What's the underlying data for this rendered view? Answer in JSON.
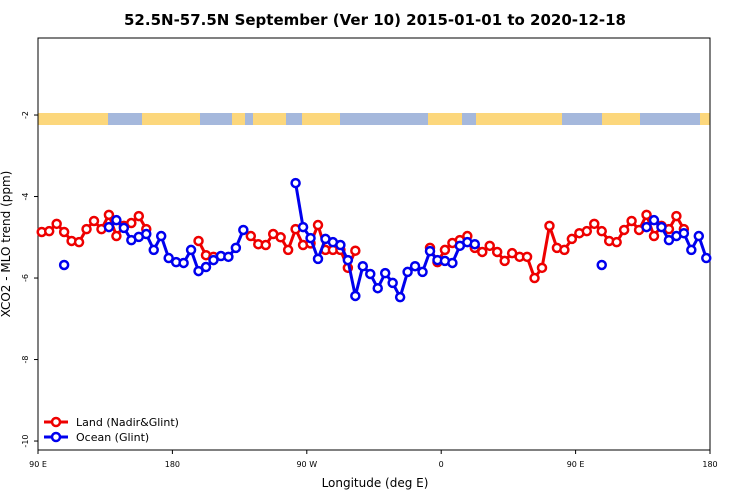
{
  "chart_data": {
    "type": "line",
    "title": "52.5N-57.5N September (Ver 10)   2015-01-01 to 2020-12-18",
    "x_label": "Longitude (deg E)",
    "y_label": "XCO2 - MLO trend (ppm)",
    "xlim": [
      90,
      540
    ],
    "ylim": [
      -10.22,
      -0.11
    ],
    "xticks": [
      {
        "value": 90,
        "label": "90 E"
      },
      180,
      {
        "value": 270,
        "label": "90 W"
      },
      {
        "value": 360,
        "label": "0"
      },
      {
        "value": 450,
        "label": "90 E"
      },
      {
        "value": 540,
        "label": "180"
      }
    ],
    "yticks": [
      -2,
      -4,
      -6,
      -8,
      -10
    ],
    "legend": "lower-left",
    "x": [
      92.5,
      97.5,
      102.5,
      107.5,
      112.5,
      117.5,
      122.5,
      127.5,
      132.5,
      137.5,
      142.5,
      147.5,
      152.5,
      157.5,
      162.5,
      167.5,
      172.5,
      177.5,
      182.5,
      187.5,
      192.5,
      197.5,
      202.5,
      207.5,
      212.5,
      217.5,
      222.5,
      227.5,
      232.5,
      237.5,
      242.5,
      247.5,
      252.5,
      257.5,
      262.5,
      267.5,
      272.5,
      277.5,
      282.5,
      287.5,
      292.5,
      297.5,
      302.5,
      307.5,
      312.5,
      317.5,
      322.5,
      327.5,
      332.5,
      337.5,
      342.5,
      347.5,
      352.5,
      357.5,
      362.5,
      367.5,
      372.5,
      377.5,
      382.5,
      387.5,
      392.5,
      397.5,
      402.5,
      407.5,
      412.5,
      417.5,
      422.5,
      427.5,
      432.5,
      437.5,
      442.5,
      447.5,
      452.5,
      457.5,
      462.5,
      467.5,
      472.5,
      477.5,
      482.5,
      487.5,
      492.5,
      497.5,
      502.5,
      507.5,
      512.5,
      517.5,
      522.5,
      527.5,
      532.5,
      537.5
    ],
    "series": [
      {
        "name": "Land (Nadir&Glint)",
        "color": "#ee0000",
        "values": [
          -4.87,
          -4.85,
          -4.67,
          -4.87,
          -5.09,
          -5.12,
          -4.8,
          -4.6,
          -4.8,
          -4.45,
          -4.97,
          -4.72,
          -4.65,
          -4.48,
          -4.8,
          null,
          null,
          null,
          null,
          null,
          null,
          -5.09,
          -5.44,
          -5.48,
          null,
          null,
          null,
          null,
          -4.97,
          -5.17,
          -5.19,
          -4.92,
          -5.0,
          -5.31,
          -4.8,
          -5.19,
          -5.15,
          -4.7,
          -5.31,
          -5.31,
          -5.31,
          -5.75,
          -5.33,
          null,
          null,
          null,
          null,
          null,
          null,
          null,
          null,
          null,
          -5.26,
          -5.61,
          -5.31,
          -5.14,
          -5.07,
          -4.97,
          -5.26,
          -5.36,
          -5.21,
          -5.36,
          -5.58,
          -5.39,
          -5.48,
          -5.48,
          -6.0,
          -5.75,
          -4.72,
          -5.26,
          -5.31,
          -5.04,
          -4.9,
          -4.85,
          -4.67,
          -4.85,
          -5.09,
          -5.12,
          -4.82,
          -4.6,
          -4.82,
          -4.45,
          -4.97,
          -4.72,
          -4.8,
          -4.48,
          -4.8,
          null,
          null,
          null
        ]
      },
      {
        "name": "Ocean (Glint)",
        "color": "#0000ee",
        "values": [
          null,
          null,
          null,
          -5.68,
          null,
          null,
          null,
          null,
          null,
          -4.75,
          -4.58,
          -4.77,
          -5.07,
          -4.99,
          -4.92,
          -5.31,
          -4.97,
          -5.51,
          -5.61,
          -5.63,
          -5.31,
          -5.83,
          -5.73,
          -5.56,
          -5.46,
          -5.48,
          -5.26,
          -4.82,
          null,
          null,
          null,
          null,
          null,
          null,
          -3.67,
          -4.75,
          -5.02,
          -5.53,
          -5.04,
          -5.12,
          -5.19,
          -5.56,
          -6.44,
          -5.71,
          -5.9,
          -6.25,
          -5.88,
          -6.12,
          -6.47,
          -5.85,
          -5.71,
          -5.85,
          -5.34,
          -5.56,
          -5.58,
          -5.63,
          -5.21,
          -5.12,
          -5.17,
          null,
          null,
          null,
          null,
          null,
          null,
          null,
          null,
          null,
          null,
          null,
          null,
          null,
          null,
          null,
          null,
          -5.68,
          null,
          null,
          null,
          null,
          null,
          -4.75,
          -4.58,
          -4.75,
          -5.07,
          -4.97,
          -4.9,
          -5.31,
          -4.97,
          -5.51
        ]
      }
    ]
  }
}
